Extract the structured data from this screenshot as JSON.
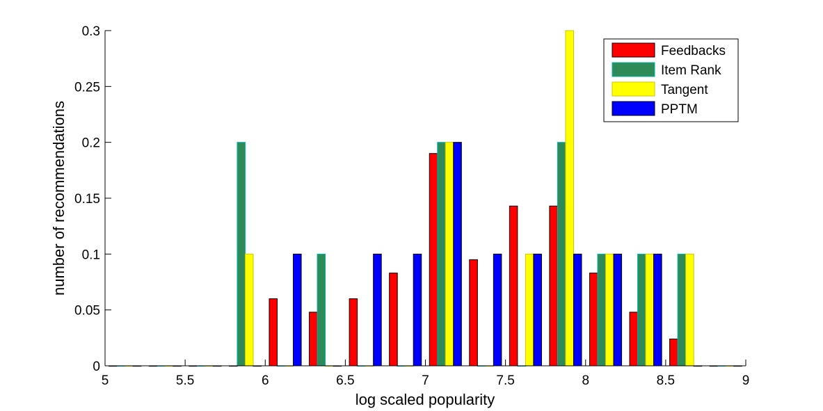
{
  "chart_data": {
    "type": "bar",
    "xlabel": "log scaled popularity",
    "ylabel": "number of recommendations",
    "xlim": [
      5,
      9
    ],
    "ylim": [
      0,
      0.3
    ],
    "xticks": [
      "5",
      "5.5",
      "6",
      "6.5",
      "7",
      "7.5",
      "8",
      "8.5",
      "9"
    ],
    "yticks": [
      "0",
      "0.05",
      "0.1",
      "0.15",
      "0.2",
      "0.25",
      "0.3"
    ],
    "grid": false,
    "legend_position": "top-right",
    "bin_centers": [
      5.125,
      5.375,
      5.625,
      5.875,
      6.125,
      6.375,
      6.625,
      6.875,
      7.125,
      7.375,
      7.625,
      7.875,
      8.125,
      8.375,
      8.625,
      8.875
    ],
    "series": [
      {
        "name": "Feedbacks",
        "color": "#ff0000",
        "edge": "#000000",
        "values": [
          0,
          0,
          0,
          0,
          0.06,
          0.048,
          0.06,
          0.083,
          0.19,
          0.095,
          0.143,
          0.143,
          0.083,
          0.048,
          0.024,
          0
        ]
      },
      {
        "name": "Item Rank",
        "color": "#2e8b57",
        "edge": "#00b3b3",
        "values": [
          0,
          0,
          0,
          0.2,
          0,
          0.1,
          0,
          0,
          0.2,
          0,
          0,
          0.2,
          0.1,
          0.1,
          0.1,
          0
        ]
      },
      {
        "name": "Tangent",
        "color": "#ffff00",
        "edge": "#c8c800",
        "values": [
          0,
          0,
          0,
          0.1,
          0,
          0,
          0,
          0,
          0.2,
          0,
          0.1,
          0.3,
          0.1,
          0.1,
          0.1,
          0
        ]
      },
      {
        "name": "PPTM",
        "color": "#0000ff",
        "edge": "#000000",
        "values": [
          0,
          0,
          0,
          0,
          0.1,
          0,
          0.1,
          0.1,
          0.2,
          0.1,
          0.1,
          0.1,
          0.1,
          0.1,
          0,
          0
        ]
      }
    ]
  }
}
